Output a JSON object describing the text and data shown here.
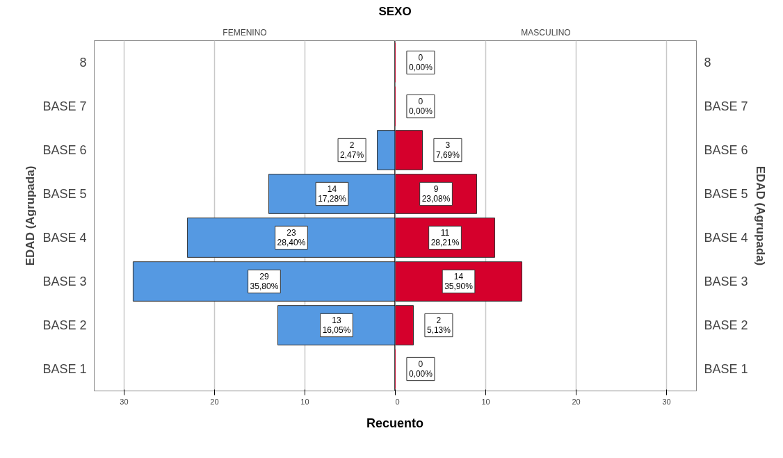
{
  "chart_data": [
    {
      "type": "bar",
      "orientation": "horizontal",
      "title": "SEXO",
      "subtitle": "FEMENINO",
      "ylabel": "EDAD (Agrupada)",
      "categories": [
        "8",
        "BASE 7",
        "BASE 6",
        "BASE 5",
        "BASE 4",
        "BASE 3",
        "BASE 2",
        "BASE 1"
      ],
      "series": [
        {
          "color": "#5599e2",
          "values": [
            0,
            0,
            2,
            14,
            23,
            29,
            13,
            0
          ]
        }
      ],
      "value_labels": [
        null,
        null,
        "2\n2,47%",
        "14\n17,28%",
        "23\n28,40%",
        "29\n35,80%",
        "13\n16,05%",
        null
      ],
      "xlim": [
        33.3,
        0
      ],
      "xticks": [
        30,
        20,
        10,
        {
          "value": 0,
          "label": null
        }
      ],
      "grid": "x",
      "ref_lines": [
        {
          "axis": "x",
          "value": 0,
          "color": "#000000"
        }
      ]
    },
    {
      "type": "bar",
      "orientation": "horizontal",
      "subtitle": "MASCULINO",
      "ylabel": "EDAD (Agrupada)",
      "xlabel": "Recuento",
      "categories": [
        "8",
        "BASE 7",
        "BASE 6",
        "BASE 5",
        "BASE 4",
        "BASE 3",
        "BASE 2",
        "BASE 1"
      ],
      "series": [
        {
          "color": "#d5002c",
          "values": [
            0,
            0,
            3,
            9,
            11,
            14,
            2,
            0
          ]
        }
      ],
      "value_labels": [
        "0\n0,00%",
        "0\n0,00%",
        "3\n7,69%",
        "9\n23,08%",
        "11\n28,21%",
        "14\n35,90%",
        "2\n5,13%",
        "0\n0,00%"
      ],
      "xlim": [
        0,
        33.3
      ],
      "xticks": [
        0,
        10,
        20,
        30
      ],
      "grid": "x"
    }
  ]
}
